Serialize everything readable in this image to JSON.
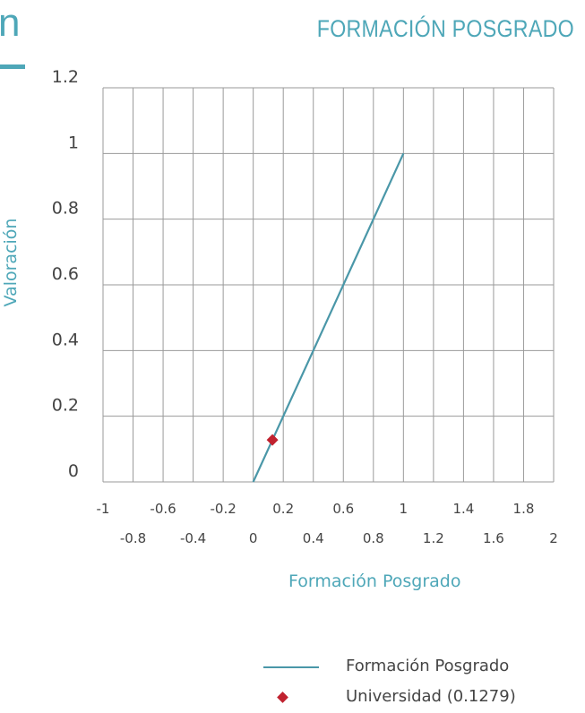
{
  "header": {
    "prev_page_fragment": "n",
    "title": "FORMACIÓN POSGRADO"
  },
  "colors": {
    "accent": "#4ea7b8",
    "line": "#4a97a8",
    "marker": "#c0222f",
    "grid": "#9a9a9a",
    "text": "#444444"
  },
  "chart_data": {
    "type": "line",
    "xlabel": "Formación Posgrado",
    "ylabel": "Valoración",
    "xlim": [
      -1,
      2
    ],
    "ylim": [
      0,
      1.2
    ],
    "x_ticks_top": [
      "-1",
      "-0.6",
      "-0.2",
      "0.2",
      "0.6",
      "1",
      "1.4",
      "1.8"
    ],
    "x_ticks_bottom": [
      "-0.8",
      "-0.4",
      "0",
      "0.4",
      "0.8",
      "1.2",
      "1.6",
      "2"
    ],
    "y_ticks": [
      "0",
      "0.2",
      "0.4",
      "0.6",
      "0.8",
      "1",
      "1.2"
    ],
    "grid": true,
    "series": [
      {
        "name": "Formación Posgrado",
        "kind": "line",
        "x": [
          0,
          1
        ],
        "y": [
          0,
          1
        ]
      },
      {
        "name": "Universidad (0.1279)",
        "kind": "marker",
        "x": [
          0.1279
        ],
        "y": [
          0.1279
        ]
      }
    ],
    "legend_position": "bottom-right"
  }
}
